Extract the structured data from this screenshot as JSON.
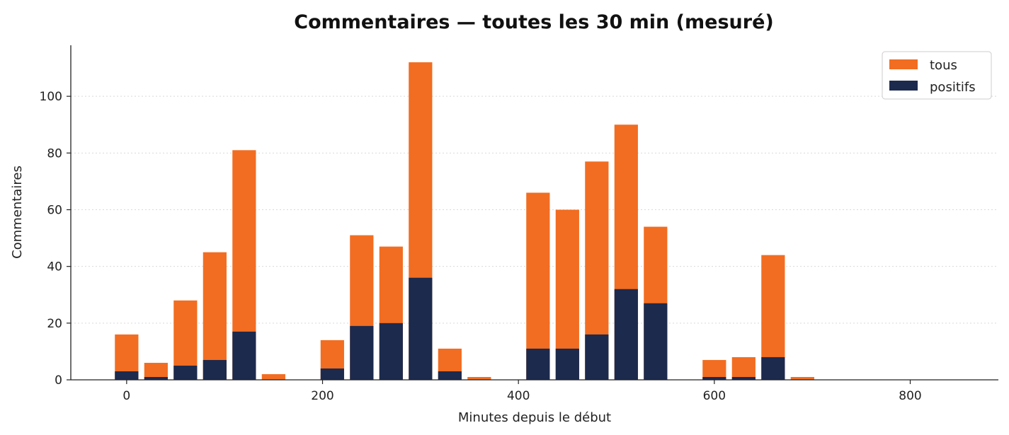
{
  "chart_data": {
    "type": "bar",
    "title": "Commentaires — toutes les 30 min (mesuré)",
    "xlabel": "Minutes depuis le début",
    "ylabel": "Commentaires",
    "xlim": [
      -57,
      890
    ],
    "ylim": [
      0,
      118
    ],
    "xticks": [
      0,
      200,
      400,
      600,
      800
    ],
    "yticks": [
      0,
      20,
      40,
      60,
      80,
      100
    ],
    "grid": "y-dotted",
    "legend_position": "top-right",
    "bar_width_minutes": 24,
    "x": [
      0,
      30,
      60,
      90,
      120,
      150,
      180,
      210,
      240,
      270,
      300,
      330,
      360,
      390,
      420,
      450,
      480,
      510,
      540,
      570,
      600,
      630,
      660,
      690,
      720,
      750,
      780,
      810,
      840,
      870
    ],
    "series": [
      {
        "name": "tous",
        "color": "#f26d21",
        "values": [
          16,
          6,
          28,
          45,
          81,
          2,
          0,
          14,
          51,
          47,
          112,
          11,
          1,
          0,
          66,
          60,
          77,
          90,
          54,
          0,
          7,
          8,
          44,
          1,
          0,
          0,
          0,
          0,
          0,
          0
        ]
      },
      {
        "name": "positifs",
        "color": "#1c2a4d",
        "values": [
          3,
          1,
          5,
          7,
          17,
          0,
          0,
          4,
          19,
          20,
          36,
          3,
          0,
          0,
          11,
          11,
          16,
          32,
          27,
          0,
          1,
          1,
          8,
          0,
          0,
          0,
          0,
          0,
          0,
          0
        ]
      }
    ]
  }
}
